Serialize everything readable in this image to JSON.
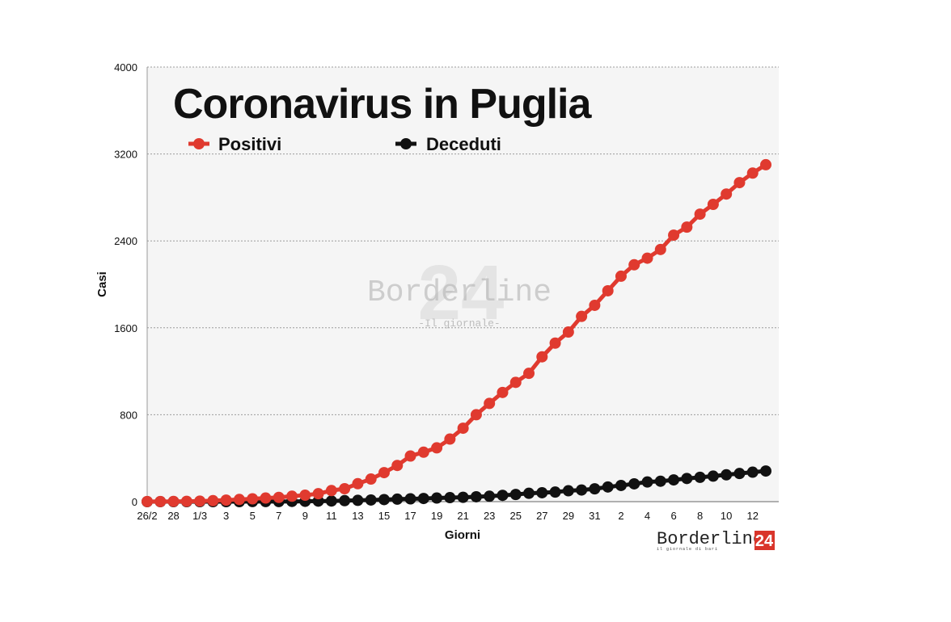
{
  "chart_data": {
    "type": "line",
    "title": "Coronavirus in Puglia",
    "xlabel": "Giorni",
    "ylabel": "Casi",
    "ylim": [
      0,
      4000
    ],
    "yticks": [
      0,
      800,
      1600,
      2400,
      3200,
      4000
    ],
    "grid": true,
    "legend": "top",
    "x_tick_labels": [
      "26/2",
      "28",
      "1/3",
      "3",
      "5",
      "7",
      "9",
      "11",
      "13",
      "15",
      "17",
      "19",
      "21",
      "23",
      "25",
      "27",
      "29",
      "31",
      "2",
      "4",
      "6",
      "8",
      "10",
      "12"
    ],
    "series": [
      {
        "name": "Positivi",
        "color": "#e03a2f",
        "values": [
          1,
          1,
          2,
          3,
          5,
          9,
          14,
          20,
          26,
          33,
          39,
          50,
          59,
          73,
          102,
          119,
          165,
          208,
          267,
          333,
          420,
          455,
          495,
          576,
          676,
          800,
          904,
          1005,
          1098,
          1181,
          1333,
          1459,
          1561,
          1705,
          1807,
          1941,
          2075,
          2180,
          2241,
          2321,
          2453,
          2527,
          2646,
          2736,
          2831,
          2936,
          3024,
          3101
        ]
      },
      {
        "name": "Deceduti",
        "color": "#111111",
        "values": [
          0,
          0,
          0,
          0,
          0,
          0,
          0,
          0,
          1,
          1,
          1,
          2,
          3,
          5,
          6,
          9,
          12,
          15,
          19,
          23,
          26,
          29,
          33,
          37,
          40,
          45,
          50,
          58,
          66,
          77,
          82,
          88,
          100,
          107,
          118,
          135,
          149,
          164,
          181,
          188,
          200,
          213,
          224,
          235,
          247,
          259,
          271,
          282
        ]
      }
    ]
  },
  "watermark": {
    "brand": "Borderline",
    "number": "24",
    "tagline": "-Il giornale-"
  },
  "logo": {
    "brand": "Borderline",
    "number": "24",
    "tagline": "il giornale di bari",
    "accent": "#d9352b"
  }
}
